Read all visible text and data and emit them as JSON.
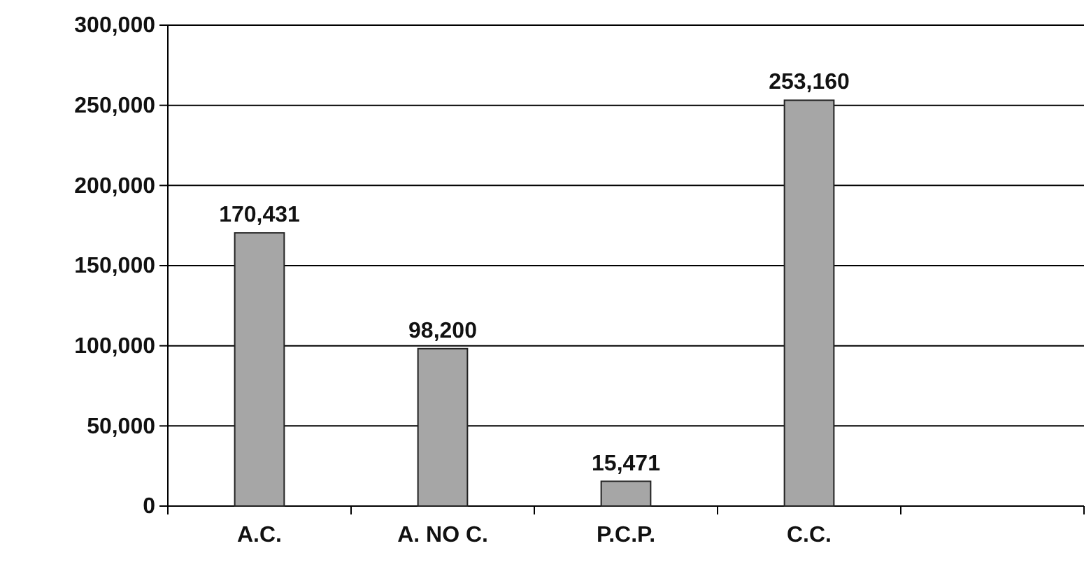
{
  "chart_data": {
    "type": "bar",
    "categories": [
      "A.C.",
      "A. NO C.",
      "P.C.P.",
      "C.C.",
      null
    ],
    "values": [
      170431,
      98200,
      15471,
      253160,
      null
    ],
    "color": "#a6a6a6",
    "ylim": [
      0,
      300000
    ],
    "yticks": [
      {
        "value": 0,
        "label": "0"
      },
      {
        "value": 50000,
        "label": "50,000"
      },
      {
        "value": 100000,
        "label": "100,000"
      },
      {
        "value": 150000,
        "label": "150,000"
      },
      {
        "value": 200000,
        "label": "200,000"
      },
      {
        "value": 250000,
        "label": "250,000"
      },
      {
        "value": 300000,
        "label": "300,000"
      }
    ],
    "grid": "y",
    "value_labels": [
      "170,431",
      "98,200",
      "15,471",
      "253,160",
      null
    ]
  }
}
